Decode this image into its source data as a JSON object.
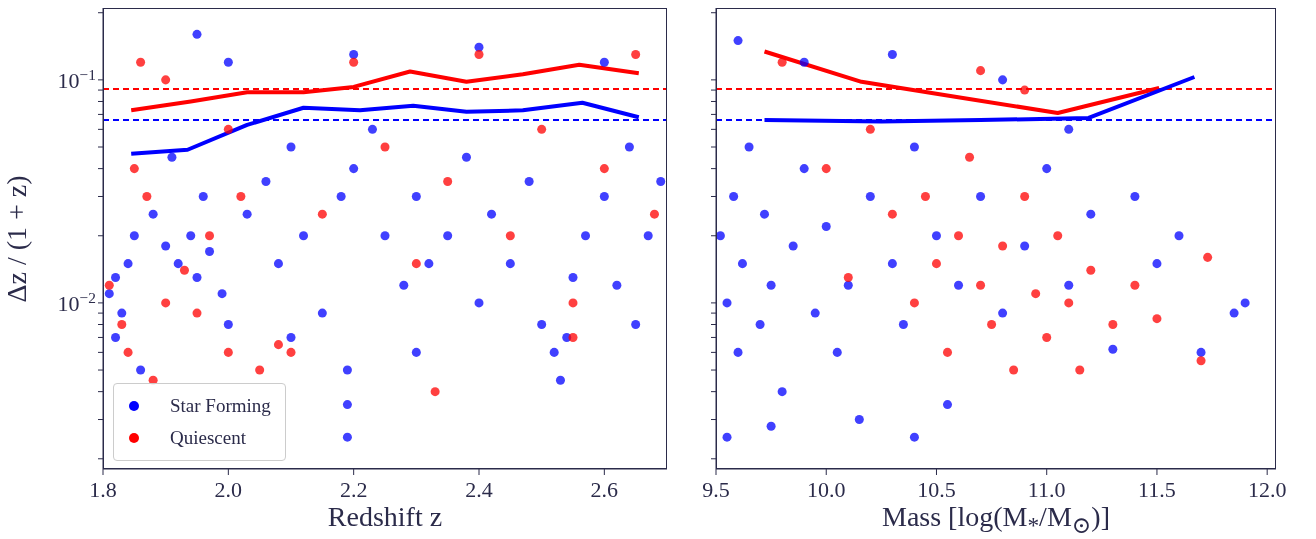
{
  "chart_data": [
    {
      "type": "scatter",
      "xlabel": "Redshift z",
      "ylabel": "Δz / (1 + z)",
      "log": "y",
      "grid": false,
      "legend": "bottom left",
      "xlim": [
        1.8,
        2.7
      ],
      "xticks": [
        1.8,
        {
          "value": 2,
          "label": "2.0"
        },
        2.2,
        2.4,
        2.6
      ],
      "ylim": [
        0.0018,
        0.21
      ],
      "yticks": [
        {
          "value": 0.002,
          "label": null
        },
        {
          "value": 0.003,
          "label": null
        },
        {
          "value": 0.004,
          "label": null
        },
        {
          "value": 0.005,
          "label": null
        },
        {
          "value": 0.006,
          "label": null
        },
        {
          "value": 0.007,
          "label": null
        },
        {
          "value": 0.008,
          "label": null
        },
        {
          "value": 0.009,
          "label": null
        },
        {
          "value": 0.01,
          "label": "10$^{−2}$"
        },
        {
          "value": 0.02,
          "label": null
        },
        {
          "value": 0.03,
          "label": null
        },
        {
          "value": 0.04,
          "label": null
        },
        {
          "value": 0.05,
          "label": null
        },
        {
          "value": 0.06,
          "label": null
        },
        {
          "value": 0.07,
          "label": null
        },
        {
          "value": 0.08,
          "label": null
        },
        {
          "value": 0.09,
          "label": null
        },
        {
          "value": 0.1,
          "label": "10$^{−1}$"
        },
        {
          "value": 0.2,
          "label": null
        }
      ],
      "ref_lines": [
        {
          "axis": "y",
          "value": 0.091,
          "color": "#ff0000",
          "line_style": "dashed"
        },
        {
          "axis": "y",
          "value": 0.066,
          "color": "#0000ff",
          "line_style": "dashed"
        }
      ],
      "series": [
        {
          "name": "Star Forming",
          "type": "scatter",
          "marker": "circle",
          "color": "#0000ff",
          "x": [
            1.81,
            1.82,
            1.83,
            1.84,
            1.82,
            1.85,
            1.88,
            1.9,
            1.92,
            1.94,
            1.95,
            1.97,
            1.99,
            2.0,
            1.96,
            1.91,
            2.03,
            2.06,
            2.08,
            2.1,
            2.12,
            2.15,
            2.18,
            2.19,
            2.19,
            2.19,
            2.2,
            2.23,
            2.25,
            2.28,
            2.3,
            2.32,
            2.35,
            2.38,
            2.4,
            2.42,
            2.45,
            2.48,
            2.5,
            2.52,
            2.53,
            2.54,
            2.55,
            2.57,
            2.6,
            2.62,
            2.64,
            2.67,
            2.69,
            2.0,
            2.2,
            2.4,
            2.6,
            1.95,
            2.3,
            2.65,
            2.1,
            1.86
          ],
          "values": [
            0.011,
            0.013,
            0.009,
            0.015,
            0.007,
            0.02,
            0.025,
            0.018,
            0.015,
            0.02,
            0.013,
            0.017,
            0.011,
            0.008,
            0.03,
            0.045,
            0.025,
            0.035,
            0.015,
            0.05,
            0.02,
            0.009,
            0.03,
            0.005,
            0.0035,
            0.0025,
            0.04,
            0.06,
            0.02,
            0.012,
            0.03,
            0.015,
            0.02,
            0.045,
            0.01,
            0.025,
            0.015,
            0.035,
            0.008,
            0.006,
            0.0045,
            0.007,
            0.013,
            0.02,
            0.03,
            0.012,
            0.05,
            0.02,
            0.035,
            0.12,
            0.13,
            0.14,
            0.12,
            0.16,
            0.006,
            0.008,
            0.007,
            0.005
          ]
        },
        {
          "name": "Quiescent",
          "type": "scatter",
          "marker": "circle",
          "color": "#ff0000",
          "x": [
            1.81,
            1.83,
            1.84,
            1.85,
            1.87,
            1.88,
            1.9,
            1.93,
            1.95,
            1.97,
            2.0,
            2.02,
            2.05,
            2.08,
            2.1,
            1.86,
            1.9,
            2.0,
            2.15,
            2.2,
            2.25,
            2.3,
            2.35,
            2.4,
            2.45,
            2.5,
            2.55,
            2.6,
            2.65,
            2.68,
            2.33,
            2.55
          ],
          "values": [
            0.012,
            0.008,
            0.006,
            0.04,
            0.03,
            0.0045,
            0.01,
            0.014,
            0.009,
            0.02,
            0.006,
            0.03,
            0.005,
            0.0065,
            0.006,
            0.12,
            0.1,
            0.06,
            0.025,
            0.12,
            0.05,
            0.015,
            0.035,
            0.13,
            0.02,
            0.06,
            0.01,
            0.04,
            0.13,
            0.025,
            0.004,
            0.007
          ]
        },
        {
          "type": "line",
          "marker": "none",
          "line_style": "solid",
          "color": "#ff0000",
          "x": [
            1.845,
            1.94,
            2.03,
            2.12,
            2.2,
            2.29,
            2.38,
            2.47,
            2.56,
            2.655
          ],
          "values": [
            0.073,
            0.08,
            0.088,
            0.088,
            0.093,
            0.109,
            0.098,
            0.106,
            0.117,
            0.107
          ]
        },
        {
          "type": "line",
          "marker": "none",
          "line_style": "solid",
          "color": "#0000ff",
          "x": [
            1.845,
            1.935,
            2.03,
            2.12,
            2.21,
            2.295,
            2.38,
            2.47,
            2.565,
            2.655
          ],
          "values": [
            0.0466,
            0.0486,
            0.0628,
            0.075,
            0.073,
            0.0765,
            0.072,
            0.073,
            0.079,
            0.068
          ]
        }
      ]
    },
    {
      "type": "scatter",
      "xlabel": "Mass [log(M$_{*}$/M$_{⊙}$)]",
      "log": "y",
      "grid": false,
      "tick_labels": "x",
      "xlim": [
        9.5,
        12.04
      ],
      "xticks": [
        9.5,
        {
          "value": 10,
          "label": "10.0"
        },
        10.5,
        {
          "value": 11,
          "label": "11.0"
        },
        11.5,
        {
          "value": 12,
          "label": "12.0"
        }
      ],
      "ylim": [
        0.0018,
        0.21
      ],
      "yticks": [
        {
          "value": 0.002,
          "label": null
        },
        {
          "value": 0.003,
          "label": null
        },
        {
          "value": 0.004,
          "label": null
        },
        {
          "value": 0.005,
          "label": null
        },
        {
          "value": 0.006,
          "label": null
        },
        {
          "value": 0.007,
          "label": null
        },
        {
          "value": 0.008,
          "label": null
        },
        {
          "value": 0.009,
          "label": null
        },
        {
          "value": 0.01,
          "label": null
        },
        {
          "value": 0.02,
          "label": null
        },
        {
          "value": 0.03,
          "label": null
        },
        {
          "value": 0.04,
          "label": null
        },
        {
          "value": 0.05,
          "label": null
        },
        {
          "value": 0.06,
          "label": null
        },
        {
          "value": 0.07,
          "label": null
        },
        {
          "value": 0.08,
          "label": null
        },
        {
          "value": 0.09,
          "label": null
        },
        {
          "value": 0.1,
          "label": null
        },
        {
          "value": 0.2,
          "label": null
        }
      ],
      "ref_lines": [
        {
          "axis": "y",
          "value": 0.091,
          "color": "#ff0000",
          "line_style": "dashed"
        },
        {
          "axis": "y",
          "value": 0.066,
          "color": "#0000ff",
          "line_style": "dashed"
        }
      ],
      "series": [
        {
          "type": "scatter",
          "marker": "circle",
          "color": "#0000ff",
          "x": [
            9.52,
            9.55,
            9.58,
            9.6,
            9.62,
            9.65,
            9.7,
            9.72,
            9.75,
            9.8,
            9.85,
            9.9,
            9.95,
            10.0,
            10.05,
            10.1,
            10.15,
            10.2,
            10.3,
            10.35,
            10.4,
            10.5,
            10.55,
            10.6,
            10.7,
            10.8,
            10.9,
            11.0,
            11.1,
            11.2,
            11.3,
            11.4,
            11.5,
            11.6,
            11.7,
            11.85,
            11.9,
            9.6,
            9.9,
            10.3,
            10.8,
            11.1,
            9.55,
            9.75,
            10.4
          ],
          "values": [
            0.02,
            0.01,
            0.03,
            0.006,
            0.015,
            0.05,
            0.008,
            0.025,
            0.012,
            0.004,
            0.018,
            0.04,
            0.009,
            0.022,
            0.006,
            0.012,
            0.003,
            0.03,
            0.015,
            0.008,
            0.05,
            0.02,
            0.0035,
            0.012,
            0.03,
            0.009,
            0.018,
            0.04,
            0.012,
            0.025,
            0.0062,
            0.03,
            0.015,
            0.02,
            0.006,
            0.009,
            0.01,
            0.15,
            0.12,
            0.13,
            0.1,
            0.06,
            0.0025,
            0.0028,
            0.0025
          ]
        },
        {
          "type": "scatter",
          "marker": "circle",
          "color": "#ff0000",
          "x": [
            9.8,
            10.0,
            10.1,
            10.2,
            10.3,
            10.4,
            10.45,
            10.5,
            10.55,
            10.6,
            10.65,
            10.7,
            10.75,
            10.8,
            10.85,
            10.9,
            10.95,
            11.0,
            11.05,
            11.1,
            11.15,
            11.2,
            11.3,
            11.4,
            11.5,
            11.73,
            11.7,
            10.7,
            10.9
          ],
          "values": [
            0.12,
            0.04,
            0.013,
            0.06,
            0.025,
            0.01,
            0.03,
            0.015,
            0.006,
            0.02,
            0.045,
            0.012,
            0.008,
            0.018,
            0.005,
            0.03,
            0.011,
            0.007,
            0.02,
            0.01,
            0.005,
            0.014,
            0.008,
            0.012,
            0.0085,
            0.016,
            0.0055,
            0.11,
            0.09
          ]
        },
        {
          "type": "line",
          "marker": "none",
          "line_style": "solid",
          "color": "#ff0000",
          "x": [
            9.72,
            10.16,
            10.62,
            11.05,
            11.51
          ],
          "values": [
            0.134,
            0.098,
            0.083,
            0.071,
            0.092
          ]
        },
        {
          "type": "line",
          "marker": "none",
          "line_style": "solid",
          "color": "#0000ff",
          "x": [
            9.72,
            10.25,
            10.7,
            11.19,
            11.67
          ],
          "values": [
            0.066,
            0.065,
            0.066,
            0.0675,
            0.103
          ]
        }
      ]
    }
  ]
}
